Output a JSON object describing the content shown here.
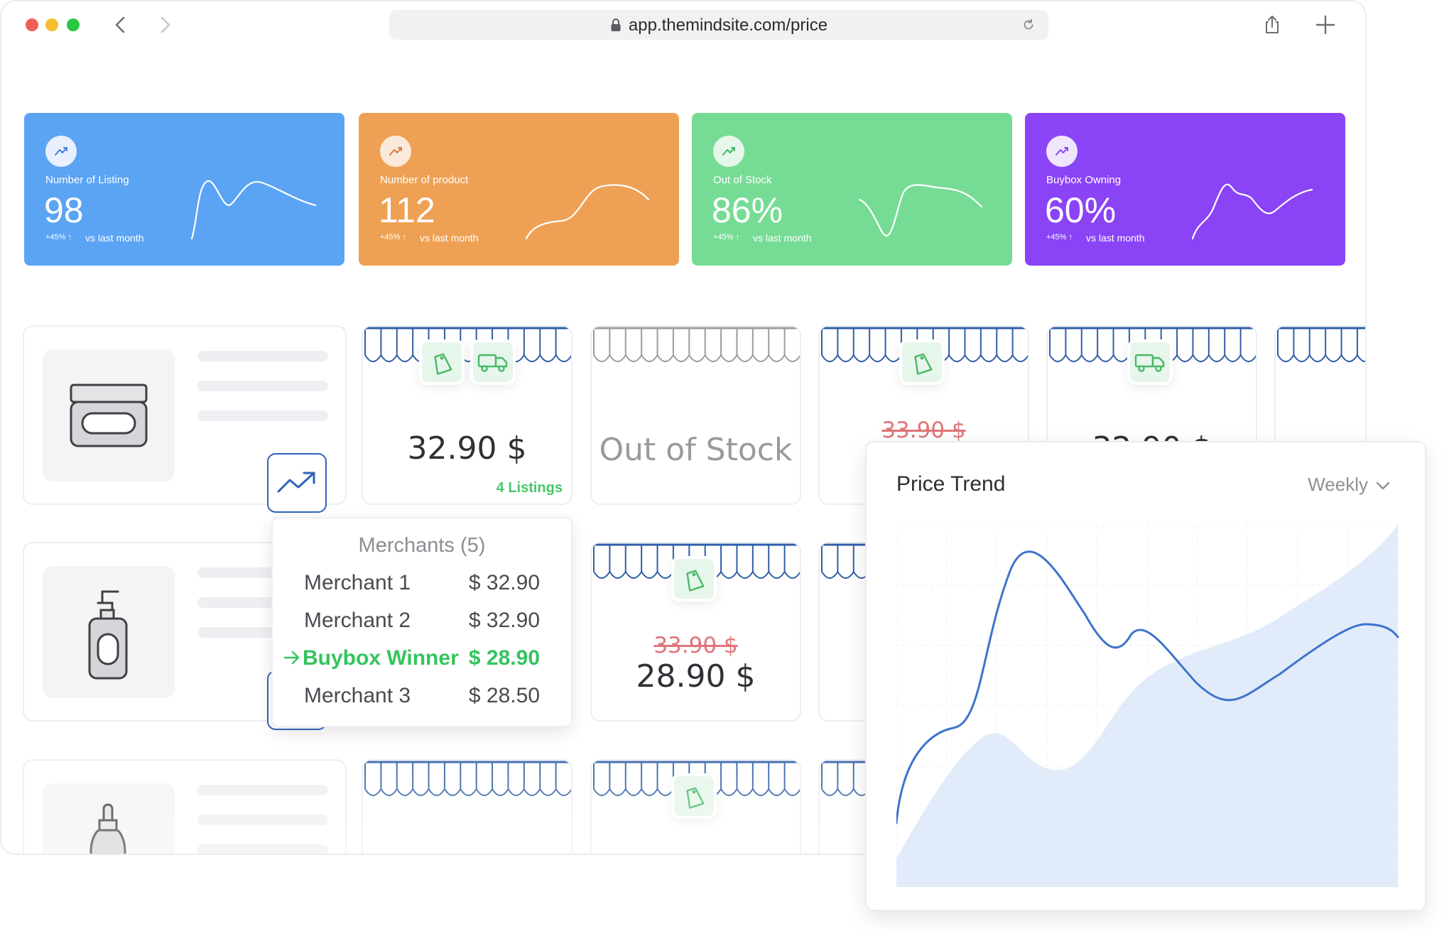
{
  "browser": {
    "url": "app.themindsite.com/price",
    "controls": {
      "back": "chevron-left-icon",
      "forward": "chevron-right-icon",
      "reload": "reload-icon",
      "share": "share-icon",
      "new_tab": "plus-icon",
      "lock": "lock-icon"
    },
    "traffic_lights": [
      "#ee5f57",
      "#f5bd2f",
      "#29c840"
    ]
  },
  "stats": [
    {
      "label": "Number of Listing",
      "value": "98",
      "delta": "+45%",
      "sub": "vs last month",
      "color": "#5ba3f3"
    },
    {
      "label": "Number of product",
      "value": "112",
      "delta": "+45%",
      "sub": "vs last month",
      "color": "#eea154"
    },
    {
      "label": "Out of Stock",
      "value": "86%",
      "delta": "+45%",
      "sub": "vs last month",
      "color": "#76dc95"
    },
    {
      "label": "Buybox Owning",
      "value": "60%",
      "delta": "+45%",
      "sub": "vs last month",
      "color": "#8a44f6"
    }
  ],
  "grid": {
    "row1": {
      "card1": {
        "price": "32.90 $",
        "listings": "4 Listings"
      },
      "card2": {
        "status": "Out of Stock"
      },
      "card3": {
        "old_price": "33.90 $"
      },
      "card4": {
        "price": "32.90 $"
      }
    },
    "row2": {
      "card2": {
        "old_price": "33.90 $",
        "price": "28.90 $"
      }
    }
  },
  "merchants_popup": {
    "title": "Merchants (5)",
    "rows": [
      {
        "name": "Merchant 1",
        "price": "$ 32.90"
      },
      {
        "name": "Merchant 2",
        "price": "$ 32.90"
      },
      {
        "name": "Buybox Winner",
        "price": "$ 28.90"
      },
      {
        "name": "Merchant 3",
        "price": "$ 28.50"
      }
    ]
  },
  "price_trend": {
    "title": "Price Trend",
    "period": "Weekly",
    "colors": {
      "line": "#3d73cc",
      "area": "#dde8f8"
    }
  }
}
